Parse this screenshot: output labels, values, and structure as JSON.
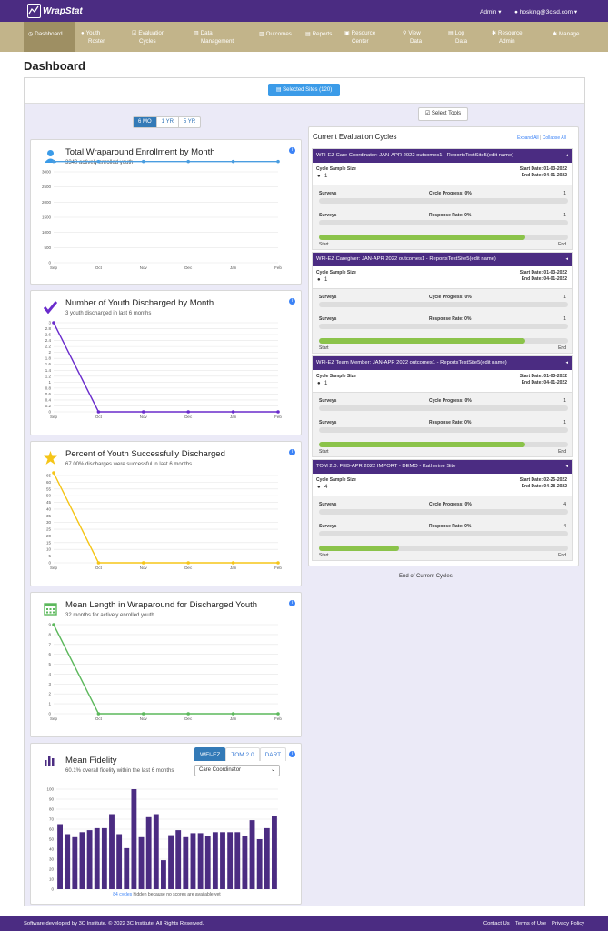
{
  "app": {
    "brand": "WrapStat",
    "admin_label": "Admin",
    "user_label": "hosking@3clsd.com",
    "caret": "▾"
  },
  "nav": [
    {
      "label": "Dashboard",
      "icon": "dashboard-icon",
      "glyph": "◷"
    },
    {
      "label": "Youth\nRoster",
      "icon": "person-icon",
      "glyph": "●"
    },
    {
      "label": "Evaluation\nCycles",
      "icon": "check-icon",
      "glyph": "☑"
    },
    {
      "label": "Data\nManagement",
      "icon": "chart-icon",
      "glyph": "▥"
    },
    {
      "label": "Outcomes",
      "icon": "bar-chart-icon",
      "glyph": "▥"
    },
    {
      "label": "Reports",
      "icon": "report-icon",
      "glyph": "▤"
    },
    {
      "label": "Resource\nCenter",
      "icon": "image-icon",
      "glyph": "▣"
    },
    {
      "label": "View\nData",
      "icon": "search-icon",
      "glyph": "⚲"
    },
    {
      "label": "Log\nData",
      "icon": "file-icon",
      "glyph": "▤"
    },
    {
      "label": "Resource\nAdmin",
      "icon": "gear-icon",
      "glyph": "✱"
    },
    {
      "label": "Manage",
      "icon": "cog-icon",
      "glyph": "✱"
    }
  ],
  "page_title": "Dashboard",
  "selected_sites": "Selected Sites (120)",
  "range_buttons": [
    "6 MO",
    "1 YR",
    "5 YR"
  ],
  "select_tools": "Select Tools",
  "charts": {
    "enrollment": {
      "title": "Total Wraparound Enrollment by Month",
      "sub": "3340 actively enrolled youth"
    },
    "discharged": {
      "title": "Number of Youth Discharged by Month",
      "sub": "3 youth discharged in last 6 months"
    },
    "percent": {
      "title": "Percent of Youth Successfully Discharged",
      "sub": "67.00% discharges were successful in last 6 months"
    },
    "length": {
      "title": "Mean Length in Wraparound for Discharged Youth",
      "sub": "32 months for actively enrolled youth"
    },
    "fidelity": {
      "title": "Mean Fidelity",
      "sub": "60.1% overall fidelity within the last 6 months",
      "tabs": [
        "WFI-EZ",
        "TOM 2.0",
        "DART"
      ],
      "select": "Care Coordinator",
      "note_link": "84 cycles",
      "note_rest": " hidden because no scores are available yet"
    }
  },
  "chart_data": [
    {
      "type": "line",
      "categories": [
        "Sep",
        "Oct",
        "Nov",
        "Dec",
        "Jan",
        "Feb"
      ],
      "values": [
        3340,
        3340,
        3340,
        3340,
        3340,
        3340
      ],
      "ylim": [
        0,
        3000
      ],
      "yticks": [
        0,
        500,
        1000,
        1500,
        2000,
        2500,
        3000
      ],
      "color": "#4a9de0"
    },
    {
      "type": "line",
      "categories": [
        "Sep",
        "Oct",
        "Nov",
        "Dec",
        "Jan",
        "Feb"
      ],
      "values": [
        3,
        0,
        0,
        0,
        0,
        0
      ],
      "ylim": [
        0,
        3
      ],
      "yticks": [
        0,
        0.2,
        0.4,
        0.6,
        0.8,
        1,
        1.2,
        1.4,
        1.6,
        1.8,
        2,
        2.2,
        2.4,
        2.6,
        2.8,
        3
      ],
      "color": "#6a2ccc"
    },
    {
      "type": "line",
      "categories": [
        "Sep",
        "Oct",
        "Nov",
        "Dec",
        "Jan",
        "Feb"
      ],
      "values": [
        67,
        0,
        0,
        0,
        0,
        0
      ],
      "ylim": [
        0,
        65
      ],
      "yticks": [
        0,
        5,
        10,
        15,
        20,
        25,
        30,
        35,
        40,
        45,
        50,
        55,
        60,
        65
      ],
      "color": "#f5c518"
    },
    {
      "type": "line",
      "categories": [
        "Sep",
        "Oct",
        "Nov",
        "Dec",
        "Jan",
        "Feb"
      ],
      "values": [
        9,
        0,
        0,
        0,
        0,
        0
      ],
      "ylim": [
        0,
        9
      ],
      "yticks": [
        0,
        1,
        2,
        3,
        4,
        5,
        6,
        7,
        8,
        9
      ],
      "color": "#5cb85c"
    },
    {
      "type": "bar",
      "values": [
        65,
        55,
        52,
        57,
        59,
        61,
        61,
        75,
        55,
        41,
        100,
        52,
        72,
        75,
        29,
        54,
        59,
        52,
        56,
        56,
        53,
        57,
        57,
        57,
        57,
        53,
        69,
        50,
        61,
        73
      ],
      "ylim": [
        0,
        100
      ],
      "yticks": [
        0,
        10,
        20,
        30,
        40,
        50,
        60,
        70,
        80,
        90,
        100
      ],
      "color": "#4b2c82"
    }
  ],
  "cycles_panel": {
    "title": "Current Evaluation Cycles",
    "expand": "Expand All",
    "sep": "|",
    "collapse": "Collapse All",
    "end": "End of Current Cycles"
  },
  "cycles": [
    {
      "title": "WFI-EZ Care Coordinator: JAN-APR 2022 outcomes1 - ReportsTestSite5(edit name)",
      "sample_label": "Cycle Sample Size",
      "sample": "1",
      "start": "Start Date: 01-03-2022",
      "end": "End Date: 04-01-2022",
      "surveys": "Surveys",
      "progress_label": "Cycle Progress: 0%",
      "progress_n": "1",
      "response_label": "Response Rate: 0%",
      "response_n": "1",
      "timeline": 0.83,
      "start_word": "Start",
      "end_word": "End"
    },
    {
      "title": "WFI-EZ Caregiver: JAN-APR 2022 outcomes1 - ReportsTestSite5(edit name)",
      "sample_label": "Cycle Sample Size",
      "sample": "1",
      "start": "Start Date: 01-03-2022",
      "end": "End Date: 04-01-2022",
      "surveys": "Surveys",
      "progress_label": "Cycle Progress: 0%",
      "progress_n": "1",
      "response_label": "Response Rate: 0%",
      "response_n": "1",
      "timeline": 0.83,
      "start_word": "Start",
      "end_word": "End"
    },
    {
      "title": "WFI-EZ Team Member: JAN-APR 2022 outcomes1 - ReportsTestSite5(edit name)",
      "sample_label": "Cycle Sample Size",
      "sample": "1",
      "start": "Start Date: 01-03-2022",
      "end": "End Date: 04-01-2022",
      "surveys": "Surveys",
      "progress_label": "Cycle Progress: 0%",
      "progress_n": "1",
      "response_label": "Response Rate: 0%",
      "response_n": "1",
      "timeline": 0.83,
      "start_word": "Start",
      "end_word": "End"
    },
    {
      "title": "TOM 2.0: FEB-APR 2022 IMPORT - DEMO - Katherine Site",
      "sample_label": "Cycle Sample Size",
      "sample": "4",
      "start": "Start Date: 02-25-2022",
      "end": "End Date: 04-28-2022",
      "surveys": "Surveys",
      "progress_label": "Cycle Progress: 0%",
      "progress_n": "4",
      "response_label": "Response Rate: 0%",
      "response_n": "4",
      "timeline": 0.32,
      "start_word": "Start",
      "end_word": "End"
    }
  ],
  "footer": {
    "text": "Software developed by 3C Institute. © 2022 3C Institute, All Rights Reserved.",
    "contact": "Contact Us",
    "terms": "Terms of Use",
    "privacy": "Privacy Policy"
  }
}
